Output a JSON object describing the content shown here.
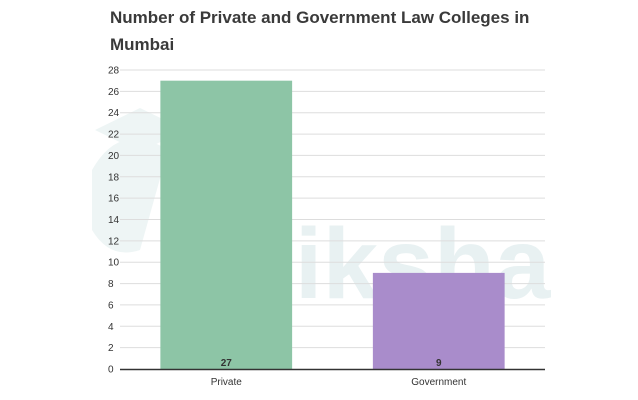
{
  "chart_data": {
    "type": "bar",
    "title_lines": [
      "Number of Private and Government Law Colleges in",
      "Mumbai"
    ],
    "categories": [
      "Private",
      "Government"
    ],
    "values": [
      27,
      9
    ],
    "data_labels": [
      "27",
      "9"
    ],
    "ylim": [
      0,
      28
    ],
    "yticks": [
      0,
      2,
      4,
      6,
      8,
      10,
      12,
      14,
      16,
      18,
      20,
      22,
      24,
      26,
      28
    ],
    "grid": true,
    "colors": [
      "#8dc5a6",
      "#a98ccb"
    ],
    "grid_color": "#dddddd",
    "axis_color": "#333333"
  },
  "watermark": {
    "text": "shiksha"
  }
}
